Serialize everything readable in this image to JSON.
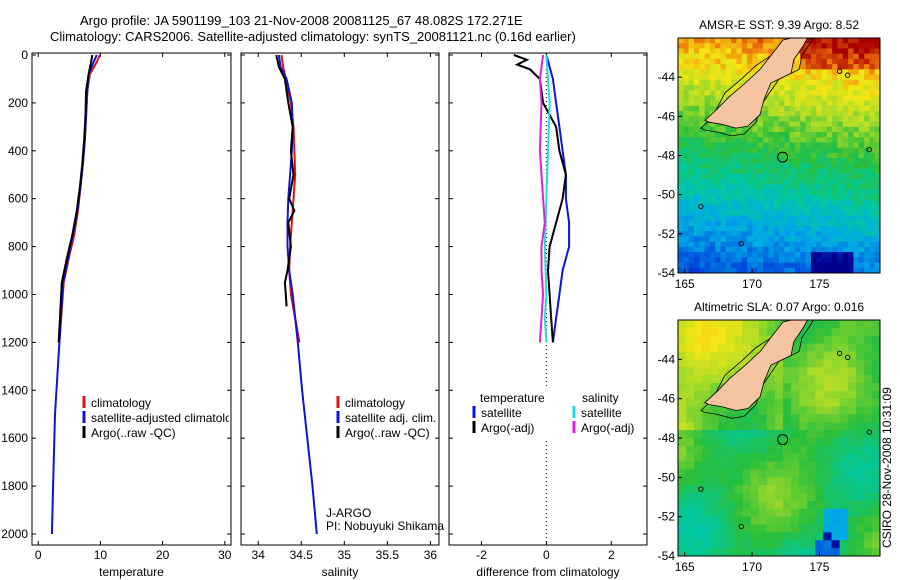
{
  "header": {
    "line1": "Argo profile: JA 5901199_103 21-Nov-2008 20081125_67 48.082S 172.271E",
    "line2": "Climatology: CARS2006. Satellite-adjusted climatology: synTS_20081121.nc (0.16d earlier)"
  },
  "stamp": "CSIRO 28-Nov-2008 10:31:09",
  "colors": {
    "climatology": "#dd1111",
    "satellite": "#1111dd",
    "argo": "#000000",
    "sat_salinity": "#22dddd",
    "argo_salinity": "#dd22dd",
    "land": "#f5c4a0"
  },
  "chart_data": [
    {
      "type": "line",
      "id": "temperature",
      "xlabel": "temperature",
      "xlim": [
        -1,
        31
      ],
      "ylim": [
        0,
        2050
      ],
      "y_reversed": true,
      "xticks": [
        "0",
        "10",
        "20",
        "30"
      ],
      "xtick_values": [
        0,
        10,
        20,
        30
      ],
      "yticks": [
        "0",
        "200",
        "400",
        "600",
        "800",
        "1000",
        "1200",
        "1400",
        "1600",
        "1800",
        "2000"
      ],
      "ytick_values": [
        0,
        200,
        400,
        600,
        800,
        1000,
        1200,
        1400,
        1600,
        1800,
        2000
      ],
      "legend": [
        "climatology",
        "satellite-adjusted climatology",
        "Argo(..raw -QC)"
      ],
      "series": [
        {
          "name": "climatology",
          "color": "#dd1111",
          "x": [
            9.9,
            9.4,
            8.3,
            7.9,
            7.7,
            7.5,
            7.2,
            6.8,
            6.4,
            5.8,
            4.9,
            4.1,
            3.4
          ],
          "y": [
            0,
            30,
            80,
            150,
            250,
            350,
            450,
            550,
            650,
            750,
            850,
            950,
            1200
          ]
        },
        {
          "name": "satellite-adjusted climatology",
          "color": "#1111dd",
          "x": [
            9.4,
            8.9,
            8.1,
            7.9,
            7.7,
            7.5,
            7.2,
            6.8,
            6.3,
            5.6,
            4.8,
            4.0,
            3.4,
            2.7,
            2.4,
            2.2
          ],
          "y": [
            0,
            30,
            80,
            150,
            250,
            350,
            450,
            550,
            650,
            750,
            850,
            950,
            1200,
            1500,
            1800,
            2000
          ]
        },
        {
          "name": "Argo(..raw -QC)",
          "color": "#000000",
          "x": [
            8.7,
            8.5,
            8.1,
            7.7,
            7.6,
            7.4,
            7.1,
            6.7,
            6.2,
            5.5,
            4.6,
            3.8,
            3.3
          ],
          "y": [
            0,
            30,
            80,
            150,
            250,
            350,
            450,
            550,
            650,
            750,
            850,
            950,
            1200
          ]
        }
      ],
      "annotations": []
    },
    {
      "type": "line",
      "id": "salinity",
      "xlabel": "salinity",
      "xlim": [
        33.8,
        36.1
      ],
      "ylim": [
        0,
        2050
      ],
      "y_reversed": true,
      "xticks": [
        "34",
        "34.5",
        "35",
        "35.5",
        "36"
      ],
      "xtick_values": [
        34,
        34.5,
        35,
        35.5,
        36
      ],
      "legend": [
        "climatology",
        "satellite adj. clim.",
        "Argo(..raw -QC)"
      ],
      "series": [
        {
          "name": "climatology",
          "color": "#dd1111",
          "x": [
            34.27,
            34.29,
            34.32,
            34.38,
            34.41,
            34.42,
            34.43,
            34.41,
            34.39,
            34.37,
            34.36,
            34.38,
            34.43,
            34.48
          ],
          "y": [
            0,
            50,
            100,
            200,
            300,
            400,
            500,
            600,
            700,
            800,
            900,
            1000,
            1100,
            1200
          ]
        },
        {
          "name": "satellite adj. clim.",
          "color": "#1111dd",
          "x": [
            34.24,
            34.26,
            34.33,
            34.39,
            34.4,
            34.39,
            34.37,
            34.35,
            34.34,
            34.34,
            34.36,
            34.4,
            34.46,
            34.51,
            34.57,
            34.63,
            34.68
          ],
          "y": [
            0,
            50,
            100,
            200,
            300,
            400,
            500,
            600,
            700,
            800,
            900,
            1000,
            1200,
            1400,
            1600,
            1800,
            2000
          ]
        },
        {
          "name": "Argo(..raw -QC)",
          "color": "#000000",
          "x": [
            34.21,
            34.24,
            34.31,
            34.35,
            34.4,
            34.38,
            34.41,
            34.36,
            34.42,
            34.35,
            34.38,
            34.34,
            34.31,
            34.32,
            34.33
          ],
          "y": [
            0,
            50,
            100,
            200,
            300,
            400,
            500,
            600,
            650,
            700,
            800,
            900,
            950,
            1000,
            1050
          ]
        }
      ],
      "annotations": [
        "J-ARGO",
        "PI: Nobuyuki Shikama"
      ]
    },
    {
      "type": "line",
      "id": "difference",
      "xlabel": "difference from climatology",
      "xlim": [
        -3,
        3.1
      ],
      "ylim": [
        0,
        2050
      ],
      "y_reversed": true,
      "xticks": [
        "-2",
        "0",
        "2"
      ],
      "xtick_values": [
        -2,
        0,
        2
      ],
      "zero_line": "dotted",
      "legend_headers": [
        "temperature",
        "salinity"
      ],
      "legend": [
        "satellite",
        "Argo(-adj)",
        "satellite",
        "Argo(-adj)"
      ],
      "series": [
        {
          "name": "temperature satellite",
          "color": "#1111dd",
          "x": [
            0.0,
            0.2,
            0.3,
            0.4,
            0.5,
            0.6,
            0.6,
            0.7,
            0.7,
            0.5,
            0.4,
            0.3,
            0.2
          ],
          "y": [
            0,
            100,
            200,
            300,
            400,
            500,
            600,
            700,
            800,
            900,
            1000,
            1100,
            1200
          ]
        },
        {
          "name": "temperature Argo(-adj)",
          "color": "#000000",
          "x": [
            -1.0,
            -0.6,
            -0.9,
            -0.5,
            -0.2,
            -0.1,
            0.3,
            0.4,
            0.6,
            0.5,
            0.3,
            0.1,
            0.05,
            0.15,
            0.2
          ],
          "y": [
            0,
            20,
            40,
            60,
            100,
            200,
            300,
            400,
            500,
            600,
            700,
            800,
            900,
            1100,
            1200
          ]
        },
        {
          "name": "salinity satellite",
          "color": "#22dddd",
          "x": [
            0.0,
            0.05,
            0.1,
            0.05,
            0.0,
            -0.05,
            0.0,
            -0.05,
            0.0
          ],
          "y": [
            0,
            100,
            200,
            400,
            600,
            800,
            1000,
            1100,
            1200
          ]
        },
        {
          "name": "salinity Argo(-adj)",
          "color": "#dd22dd",
          "x": [
            -0.1,
            -0.2,
            -0.15,
            -0.2,
            -0.1,
            -0.05,
            -0.15,
            -0.15,
            -0.1,
            -0.15,
            -0.2
          ],
          "y": [
            0,
            100,
            200,
            400,
            600,
            700,
            800,
            900,
            1000,
            1100,
            1200
          ]
        }
      ],
      "annotations": []
    },
    {
      "type": "heatmap",
      "id": "sst-map",
      "title": "AMSR-E SST: 9.39 Argo: 8.52",
      "xlim": [
        164.5,
        179.5
      ],
      "ylim": [
        -54,
        -42
      ],
      "xticks": [
        "165",
        "170",
        "175"
      ],
      "xtick_values": [
        165,
        170,
        175
      ],
      "yticks": [
        "-44",
        "-46",
        "-48",
        "-50",
        "-52",
        "-54"
      ],
      "ytick_values": [
        -44,
        -46,
        -48,
        -50,
        -52,
        -54
      ],
      "marker": {
        "lon": 172.271,
        "lat": -48.082
      },
      "value_range": [
        6,
        16
      ]
    },
    {
      "type": "heatmap",
      "id": "sla-map",
      "title": "Altimetric SLA: 0.07 Argo: 0.016",
      "xlim": [
        164.5,
        179.5
      ],
      "ylim": [
        -54,
        -42
      ],
      "xticks": [
        "165",
        "170",
        "175"
      ],
      "xtick_values": [
        165,
        170,
        175
      ],
      "yticks": [
        "-44",
        "-46",
        "-48",
        "-50",
        "-52",
        "-54"
      ],
      "ytick_values": [
        -44,
        -46,
        -48,
        -50,
        -52,
        -54
      ],
      "marker": {
        "lon": 172.271,
        "lat": -48.082
      },
      "value_range": [
        -0.2,
        0.3
      ]
    }
  ]
}
